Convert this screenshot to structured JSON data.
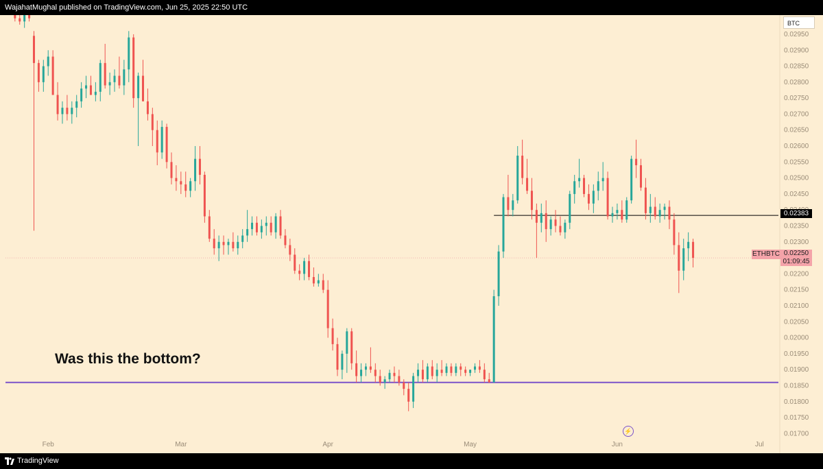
{
  "header": {
    "published_text": "WajahatMughal published on TradingView.com, Jun 25, 2025 22:50 UTC"
  },
  "footer": {
    "brand": "TradingView",
    "logo_icon": "tradingview-logo-icon"
  },
  "quote_currency": "BTC",
  "symbol": "ETHBTC",
  "last_price": "0.02250",
  "countdown": "01:09:45",
  "horizontal_line_label": "0.02383",
  "annotation": "Was this the bottom?",
  "icons": {
    "alert": "lightning-icon"
  },
  "colors": {
    "background": "#fdeed3",
    "up": "#26a69a",
    "down": "#ef5350",
    "support_line": "#7b52c9",
    "resistance_line": "#000000"
  },
  "chart_data": {
    "type": "candlestick",
    "symbol": "ETHBTC",
    "timeframe": "1D",
    "x_tick_labels": [
      "Feb",
      "Mar",
      "Apr",
      "May",
      "Jun",
      "Jul"
    ],
    "y_tick_labels": [
      "0.02950",
      "0.02900",
      "0.02850",
      "0.02800",
      "0.02750",
      "0.02700",
      "0.02650",
      "0.02600",
      "0.02550",
      "0.02500",
      "0.02450",
      "0.02400",
      "0.02350",
      "0.02300",
      "0.02250",
      "0.02200",
      "0.02150",
      "0.02100",
      "0.02050",
      "0.02000",
      "0.01950",
      "0.01900",
      "0.01850",
      "0.01800",
      "0.01750",
      "0.01700"
    ],
    "ylim": [
      0.0169,
      0.0301
    ],
    "date_range": [
      "2025-01-23",
      "2025-07-05"
    ],
    "first_candle_date": "2025-01-25",
    "candles_ohlc": [
      [
        0.0301,
        0.0302,
        0.0299,
        0.03
      ],
      [
        0.03,
        0.0301,
        0.0298,
        0.0299
      ],
      [
        0.0299,
        0.0302,
        0.0297,
        0.0301
      ],
      [
        0.0301,
        0.0302,
        0.0299,
        0.03
      ],
      [
        0.02945,
        0.0296,
        0.02335,
        0.0286
      ],
      [
        0.0286,
        0.0287,
        0.0277,
        0.028
      ],
      [
        0.028,
        0.0287,
        0.0277,
        0.0285
      ],
      [
        0.0285,
        0.029,
        0.0282,
        0.0288
      ],
      [
        0.0288,
        0.029,
        0.0279,
        0.0276
      ],
      [
        0.0276,
        0.028,
        0.0268,
        0.027
      ],
      [
        0.027,
        0.0274,
        0.0267,
        0.0272
      ],
      [
        0.0272,
        0.0276,
        0.0268,
        0.027
      ],
      [
        0.027,
        0.0274,
        0.0267,
        0.0272
      ],
      [
        0.0272,
        0.0276,
        0.0269,
        0.0274
      ],
      [
        0.0274,
        0.028,
        0.0272,
        0.0278
      ],
      [
        0.0278,
        0.0282,
        0.0275,
        0.0279
      ],
      [
        0.0279,
        0.0282,
        0.0276,
        0.0276
      ],
      [
        0.0276,
        0.028,
        0.0274,
        0.0277
      ],
      [
        0.0277,
        0.0287,
        0.0274,
        0.0286
      ],
      [
        0.0286,
        0.0292,
        0.0278,
        0.0279
      ],
      [
        0.0279,
        0.0283,
        0.0276,
        0.028
      ],
      [
        0.028,
        0.0284,
        0.0277,
        0.0282
      ],
      [
        0.0282,
        0.0288,
        0.0278,
        0.0279
      ],
      [
        0.0279,
        0.0287,
        0.0276,
        0.0284
      ],
      [
        0.0284,
        0.0296,
        0.028,
        0.0294
      ],
      [
        0.0294,
        0.0295,
        0.0272,
        0.0275
      ],
      [
        0.0275,
        0.0283,
        0.026,
        0.0282
      ],
      [
        0.0282,
        0.0287,
        0.0278,
        0.0274
      ],
      [
        0.0274,
        0.0278,
        0.0268,
        0.027
      ],
      [
        0.027,
        0.0272,
        0.026,
        0.0265
      ],
      [
        0.0265,
        0.0268,
        0.0254,
        0.0258
      ],
      [
        0.0258,
        0.0268,
        0.0256,
        0.0266
      ],
      [
        0.0266,
        0.0267,
        0.0253,
        0.0255
      ],
      [
        0.0255,
        0.0258,
        0.0248,
        0.025
      ],
      [
        0.025,
        0.0254,
        0.0246,
        0.0249
      ],
      [
        0.0249,
        0.0252,
        0.0245,
        0.0248
      ],
      [
        0.0248,
        0.0252,
        0.0244,
        0.0246
      ],
      [
        0.0246,
        0.025,
        0.0244,
        0.0249
      ],
      [
        0.0249,
        0.026,
        0.0246,
        0.0256
      ],
      [
        0.0256,
        0.026,
        0.0248,
        0.0251
      ],
      [
        0.0251,
        0.0252,
        0.0236,
        0.0238
      ],
      [
        0.0238,
        0.024,
        0.023,
        0.0231
      ],
      [
        0.0231,
        0.0234,
        0.0226,
        0.0228
      ],
      [
        0.0228,
        0.0232,
        0.0224,
        0.023
      ],
      [
        0.023,
        0.0232,
        0.0226,
        0.0229
      ],
      [
        0.0229,
        0.0231,
        0.0226,
        0.023
      ],
      [
        0.023,
        0.0233,
        0.0227,
        0.0228
      ],
      [
        0.0228,
        0.0232,
        0.0226,
        0.023
      ],
      [
        0.023,
        0.0234,
        0.0228,
        0.0232
      ],
      [
        0.0232,
        0.024,
        0.023,
        0.0234
      ],
      [
        0.0234,
        0.0238,
        0.0232,
        0.0236
      ],
      [
        0.0236,
        0.0238,
        0.0232,
        0.0233
      ],
      [
        0.0233,
        0.0237,
        0.0231,
        0.0235
      ],
      [
        0.0235,
        0.0238,
        0.0232,
        0.0236
      ],
      [
        0.0236,
        0.0238,
        0.0232,
        0.0233
      ],
      [
        0.0233,
        0.0239,
        0.0231,
        0.0238
      ],
      [
        0.0238,
        0.024,
        0.0231,
        0.0232
      ],
      [
        0.0232,
        0.0234,
        0.0228,
        0.0229
      ],
      [
        0.0229,
        0.0231,
        0.0224,
        0.0226
      ],
      [
        0.0226,
        0.0228,
        0.022,
        0.0221
      ],
      [
        0.0221,
        0.0223,
        0.0218,
        0.022
      ],
      [
        0.022,
        0.0225,
        0.0218,
        0.0224
      ],
      [
        0.0224,
        0.0226,
        0.0218,
        0.0219
      ],
      [
        0.0219,
        0.0222,
        0.0216,
        0.0217
      ],
      [
        0.0217,
        0.022,
        0.0216,
        0.0218
      ],
      [
        0.0218,
        0.022,
        0.0214,
        0.0215
      ],
      [
        0.0215,
        0.0218,
        0.02,
        0.0203
      ],
      [
        0.0203,
        0.0206,
        0.0196,
        0.0198
      ],
      [
        0.0198,
        0.02,
        0.0188,
        0.019
      ],
      [
        0.019,
        0.0196,
        0.0187,
        0.0195
      ],
      [
        0.0195,
        0.0203,
        0.0189,
        0.0202
      ],
      [
        0.0202,
        0.0203,
        0.019,
        0.0192
      ],
      [
        0.0192,
        0.0196,
        0.0186,
        0.0188
      ],
      [
        0.0188,
        0.0192,
        0.0186,
        0.019
      ],
      [
        0.019,
        0.0192,
        0.0188,
        0.0191
      ],
      [
        0.0191,
        0.0197,
        0.0189,
        0.019
      ],
      [
        0.019,
        0.0192,
        0.0186,
        0.0188
      ],
      [
        0.0188,
        0.019,
        0.0185,
        0.0186
      ],
      [
        0.0186,
        0.0188,
        0.0184,
        0.0187
      ],
      [
        0.0187,
        0.019,
        0.0186,
        0.0189
      ],
      [
        0.0189,
        0.0191,
        0.0186,
        0.0188
      ],
      [
        0.0188,
        0.019,
        0.0185,
        0.0186
      ],
      [
        0.0186,
        0.0187,
        0.0182,
        0.0184
      ],
      [
        0.0184,
        0.0186,
        0.0177,
        0.018
      ],
      [
        0.018,
        0.0189,
        0.0178,
        0.0188
      ],
      [
        0.0188,
        0.0192,
        0.0186,
        0.019
      ],
      [
        0.019,
        0.0193,
        0.0186,
        0.0187
      ],
      [
        0.0187,
        0.0192,
        0.0186,
        0.0191
      ],
      [
        0.0191,
        0.0193,
        0.0187,
        0.0188
      ],
      [
        0.0188,
        0.0192,
        0.0186,
        0.019
      ],
      [
        0.019,
        0.0193,
        0.0188,
        0.0189
      ],
      [
        0.0189,
        0.0192,
        0.0188,
        0.0191
      ],
      [
        0.0191,
        0.0192,
        0.0188,
        0.0189
      ],
      [
        0.0189,
        0.0192,
        0.0188,
        0.0191
      ],
      [
        0.0191,
        0.0192,
        0.0188,
        0.019
      ],
      [
        0.019,
        0.0191,
        0.0188,
        0.0189
      ],
      [
        0.0189,
        0.019,
        0.0188,
        0.019
      ],
      [
        0.019,
        0.0192,
        0.0189,
        0.0191
      ],
      [
        0.0191,
        0.0193,
        0.0189,
        0.019
      ],
      [
        0.019,
        0.0192,
        0.0186,
        0.0187
      ],
      [
        0.0187,
        0.0189,
        0.0186,
        0.0186
      ],
      [
        0.0186,
        0.0215,
        0.0186,
        0.0213
      ],
      [
        0.0213,
        0.0229,
        0.021,
        0.0227
      ],
      [
        0.0227,
        0.0245,
        0.0225,
        0.0244
      ],
      [
        0.0244,
        0.0251,
        0.0238,
        0.024
      ],
      [
        0.024,
        0.0245,
        0.0238,
        0.0243
      ],
      [
        0.0243,
        0.026,
        0.0242,
        0.0257
      ],
      [
        0.0257,
        0.0262,
        0.0248,
        0.025
      ],
      [
        0.025,
        0.0256,
        0.0245,
        0.0246
      ],
      [
        0.0246,
        0.025,
        0.0237,
        0.024
      ],
      [
        0.024,
        0.0242,
        0.0225,
        0.0236
      ],
      [
        0.0236,
        0.0242,
        0.0233,
        0.0239
      ],
      [
        0.0239,
        0.0243,
        0.023,
        0.0234
      ],
      [
        0.0234,
        0.0238,
        0.0232,
        0.0237
      ],
      [
        0.0237,
        0.024,
        0.0233,
        0.0235
      ],
      [
        0.0235,
        0.0238,
        0.0232,
        0.0233
      ],
      [
        0.0233,
        0.0237,
        0.0231,
        0.0236
      ],
      [
        0.0236,
        0.0246,
        0.0234,
        0.0245
      ],
      [
        0.0245,
        0.0251,
        0.0242,
        0.0249
      ],
      [
        0.0249,
        0.0256,
        0.0247,
        0.025
      ],
      [
        0.025,
        0.0251,
        0.0244,
        0.0245
      ],
      [
        0.0245,
        0.0248,
        0.024,
        0.0242
      ],
      [
        0.0242,
        0.0248,
        0.0239,
        0.0246
      ],
      [
        0.0246,
        0.0252,
        0.0243,
        0.0249
      ],
      [
        0.0249,
        0.0255,
        0.0246,
        0.025
      ],
      [
        0.025,
        0.0252,
        0.0237,
        0.0238
      ],
      [
        0.0238,
        0.0241,
        0.0236,
        0.0239
      ],
      [
        0.0239,
        0.0242,
        0.0237,
        0.024
      ],
      [
        0.024,
        0.0243,
        0.0236,
        0.0237
      ],
      [
        0.0237,
        0.0244,
        0.0236,
        0.0243
      ],
      [
        0.0243,
        0.0257,
        0.0242,
        0.0256
      ],
      [
        0.0256,
        0.0262,
        0.025,
        0.0254
      ],
      [
        0.0254,
        0.0256,
        0.0246,
        0.0247
      ],
      [
        0.0247,
        0.025,
        0.0237,
        0.0239
      ],
      [
        0.0239,
        0.0245,
        0.0236,
        0.0241
      ],
      [
        0.0241,
        0.0244,
        0.0237,
        0.0238
      ],
      [
        0.0238,
        0.0242,
        0.0236,
        0.024
      ],
      [
        0.024,
        0.0242,
        0.0237,
        0.0241
      ],
      [
        0.0241,
        0.0243,
        0.0234,
        0.0237
      ],
      [
        0.0237,
        0.0239,
        0.0226,
        0.0229
      ],
      [
        0.0229,
        0.0233,
        0.0214,
        0.0221
      ],
      [
        0.0221,
        0.0231,
        0.0218,
        0.0228
      ],
      [
        0.0228,
        0.0233,
        0.0224,
        0.023
      ],
      [
        0.023,
        0.0231,
        0.0222,
        0.0225
      ]
    ],
    "horizontal_lines": [
      {
        "price": 0.02383,
        "color": "#000000",
        "label": "0.02383"
      },
      {
        "price": 0.0186,
        "color": "#7b52c9"
      }
    ],
    "last_price": 0.0225,
    "grid": false
  }
}
